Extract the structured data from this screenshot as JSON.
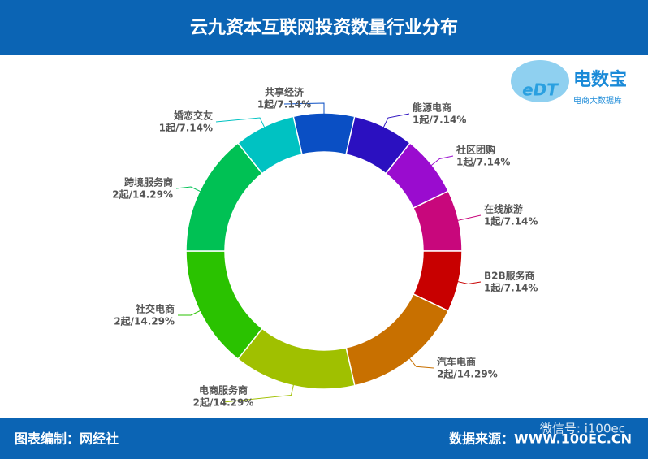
{
  "chart_data": {
    "type": "donut",
    "title": "云九资本互联网投资数量行业分布",
    "categories": [
      "共享经济",
      "能源电商",
      "社区团购",
      "在线旅游",
      "B2B服务商",
      "汽车电商",
      "电商服务商",
      "社交电商",
      "跨境服务商",
      "婚恋交友"
    ],
    "values": [
      1,
      1,
      1,
      1,
      1,
      2,
      2,
      2,
      2,
      1
    ],
    "value_labels": [
      "1起/7.14%",
      "1起/7.14%",
      "1起/7.14%",
      "1起/7.14%",
      "1起/7.14%",
      "2起/14.29%",
      "2起/14.29%",
      "2起/14.29%",
      "2起/14.29%",
      "1起/7.14%"
    ],
    "colors": [
      "#0a4fc4",
      "#2b10c0",
      "#9a0ccf",
      "#c8077c",
      "#c80000",
      "#c87000",
      "#a0c000",
      "#2ac200",
      "#00c154",
      "#00c2c2"
    ],
    "footer_left": "图表编制：网经社",
    "footer_right": "数据来源：WWW.100EC.CN",
    "logo_name": "电数宝",
    "logo_sub": "电商大数据库",
    "logo_mark": "eDT",
    "watermark": "微信号: i100ec"
  }
}
